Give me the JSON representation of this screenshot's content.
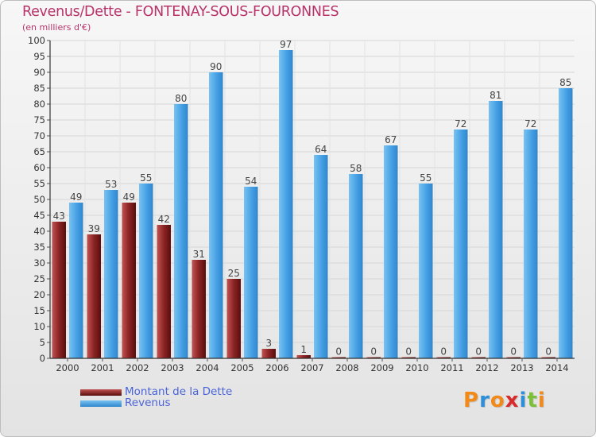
{
  "header": {
    "title": "Revenus/Dette - FONTENAY-SOUS-FOURONNES",
    "subtitle": "(en milliers d'€)"
  },
  "legend": {
    "items": [
      {
        "label": "Montant de la Dette",
        "color": "#7a1b1b"
      },
      {
        "label": "Revenus",
        "color": "#4aa3e6"
      }
    ]
  },
  "logo": {
    "text": "Proxiti",
    "letters": [
      "P",
      "r",
      "o",
      "x",
      "i",
      "t",
      "i"
    ],
    "colors": [
      "#f28a1a",
      "#2e8fd8",
      "#f28a1a",
      "#d92b2b",
      "#2e8fd8",
      "#7bbf3a",
      "#f28a1a"
    ]
  },
  "chart_data": {
    "type": "bar",
    "title": "Revenus/Dette - FONTENAY-SOUS-FOURONNES",
    "subtitle": "(en milliers d'€)",
    "xlabel": "",
    "ylabel": "",
    "ylim": [
      0,
      100
    ],
    "ytick_step": 5,
    "grid": true,
    "legend_position": "bottom-left",
    "categories": [
      "2000",
      "2001",
      "2002",
      "2003",
      "2004",
      "2005",
      "2006",
      "2007",
      "2008",
      "2009",
      "2010",
      "2011",
      "2012",
      "2013",
      "2014"
    ],
    "series": [
      {
        "name": "Montant de la Dette",
        "color": "#7a1b1b",
        "values": [
          43,
          39,
          49,
          42,
          31,
          25,
          3,
          1,
          0,
          0,
          0,
          0,
          0,
          0,
          0
        ]
      },
      {
        "name": "Revenus",
        "color": "#4aa3e6",
        "values": [
          49,
          53,
          55,
          80,
          90,
          54,
          97,
          64,
          58,
          67,
          55,
          72,
          81,
          72,
          85
        ]
      }
    ]
  }
}
